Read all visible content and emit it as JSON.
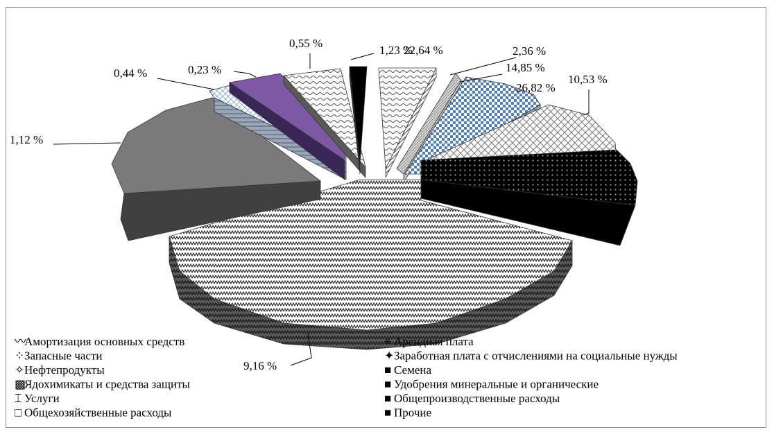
{
  "chart_data": {
    "type": "pie",
    "title": "",
    "slices": [
      {
        "name": "Амортизация основных средств",
        "label": "22,64 %",
        "value": 22.64
      },
      {
        "name": "Арендная плата",
        "label": "2,36 %",
        "value": 2.36
      },
      {
        "name": "Запасные части",
        "label": "14,85 %",
        "value": 14.85
      },
      {
        "name": "Заработная плата с отчислениями на социальные нужды",
        "label": "26,82 %",
        "value": 26.82
      },
      {
        "name": "Нефтепродукты",
        "label": "10,53 %",
        "value": 10.53
      },
      {
        "name": "Семена",
        "label": "1,12 %",
        "value": 1.12
      },
      {
        "name": "Ядохимикаты и средства защиты",
        "label": "9,16 %",
        "value": 9.16
      },
      {
        "name": "Удобрения минеральные и органические",
        "label": "0,44 %",
        "value": 0.44
      },
      {
        "name": "Услуги",
        "label": "0,23 %",
        "value": 0.23
      },
      {
        "name": "Общепроизводственные расходы",
        "label": "0,55 %",
        "value": 0.55
      },
      {
        "name": "Общехозяйственные расходы",
        "label": "1,23 %",
        "value": 1.23
      },
      {
        "name": "Прочие",
        "label": "",
        "value": 0
      }
    ],
    "legend": [
      {
        "text": "Амортизация основных средств",
        "marker": "〰"
      },
      {
        "text": "Арендная плата",
        "marker": "≡"
      },
      {
        "text": "Запасные части",
        "marker": "⁘"
      },
      {
        "text": "Заработная плата с отчислениями на социальные нужды",
        "marker": "✦"
      },
      {
        "text": "Нефтепродукты",
        "marker": "✧"
      },
      {
        "text": "Семена",
        "marker": "■"
      },
      {
        "text": "Ядохимикаты и средства защиты",
        "marker": "▩"
      },
      {
        "text": "Удобрения минеральные и органические",
        "marker": "■"
      },
      {
        "text": "Услуги",
        "marker": "⌶"
      },
      {
        "text": "Общепроизводственные расходы",
        "marker": "■"
      },
      {
        "text": "Общехозяйственные расходы",
        "marker": "□"
      },
      {
        "text": "Прочие",
        "marker": "■"
      }
    ],
    "legend_placement": "bottom",
    "style": "3d-exploded",
    "colors": {
      "purple": "#7e58a5",
      "dark": "#000000",
      "gray": "#7a7a7a",
      "blue": "#4f7fc0"
    }
  }
}
